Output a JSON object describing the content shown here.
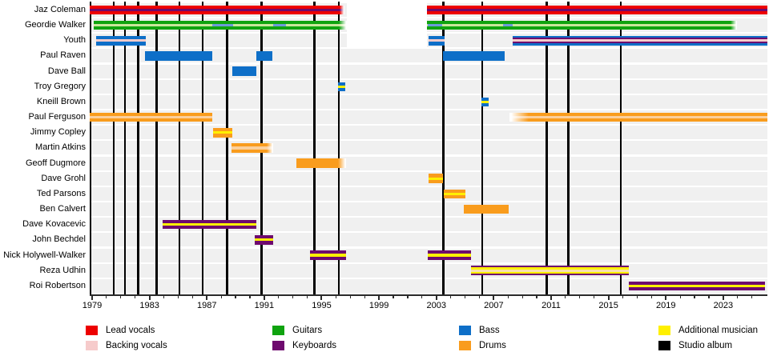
{
  "chart_data": {
    "type": "timeline",
    "title": "",
    "xlabel": "",
    "ylabel": "",
    "axis": {
      "tick_years": [
        1979,
        1983,
        1987,
        1991,
        1995,
        1999,
        2003,
        2007,
        2011,
        2015,
        2019,
        2023
      ],
      "minor_tick_start": 1979,
      "minor_tick_end": 2025,
      "year_min": 1978.8,
      "year_max": 2026.1,
      "grid": false
    },
    "palette": {
      "lead": "#ED0000",
      "backing": "#F6CBCB",
      "guitars": "#0FA30F",
      "guitars_light": "#C9E79B",
      "keys": "#6E0A6E",
      "keys_light": "#F9DFAF",
      "bass": "#0E6FC8",
      "bass_light": "#6C9BD9",
      "drums": "#F99C1D",
      "drums_light": "#FBCF9B",
      "extra": "#FFF000",
      "album": "#000000",
      "hiatus": "#FFFFFF"
    },
    "legend": [
      {
        "label": "Lead vocals",
        "color_key": "lead"
      },
      {
        "label": "Backing vocals",
        "color_key": "backing"
      },
      {
        "label": "Guitars",
        "color_key": "guitars"
      },
      {
        "label": "Keyboards",
        "color_key": "keys"
      },
      {
        "label": "Bass",
        "color_key": "bass"
      },
      {
        "label": "Drums",
        "color_key": "drums"
      },
      {
        "label": "Additional musician",
        "color_key": "extra"
      },
      {
        "label": "Studio album",
        "color_key": "album"
      }
    ],
    "album_years": [
      1980.5,
      1981.3,
      1982.2,
      1983.5,
      1985.1,
      1986.7,
      1988.4,
      1990.8,
      1994.5,
      1996.2,
      2003.5,
      2006.2,
      2010.7,
      2012.2,
      2015.85
    ],
    "hiatus": {
      "from": 1996.75,
      "to": 2002.34,
      "member_rows": [
        0,
        1,
        2
      ]
    },
    "members": [
      {
        "name": "Jaz Coleman",
        "bars": [
          {
            "from": 1978.83,
            "to": 1996.59,
            "layers": [
              "lead",
              "keys",
              "lead"
            ],
            "fade_r": 6
          },
          {
            "from": 2002.34,
            "to": 2026.06,
            "layers": [
              "lead",
              "keys",
              "lead"
            ]
          }
        ]
      },
      {
        "name": "Geordie Walker",
        "bars": [
          {
            "from": 1979.11,
            "to": 1996.75,
            "layers": [
              "guitars",
              "guitars_light",
              "guitars"
            ],
            "fade_r": 10
          },
          {
            "from": 2002.34,
            "to": 2023.94,
            "layers": [
              "guitars",
              "guitars_light",
              "guitars"
            ],
            "fade_r": 8
          },
          {
            "from": 1987.38,
            "to": 1988.83,
            "layers": [
              "guitars",
              "bass_light",
              "guitars"
            ]
          },
          {
            "from": 1991.62,
            "to": 1992.51,
            "layers": [
              "guitars",
              "bass_light",
              "guitars"
            ]
          },
          {
            "from": 2002.39,
            "to": 2003.4,
            "layers": [
              "guitars",
              "bass_light",
              "guitars"
            ]
          },
          {
            "from": 2007.64,
            "to": 2008.31,
            "layers": [
              "guitars",
              "bass_light",
              "guitars"
            ]
          }
        ]
      },
      {
        "name": "Youth",
        "bars": [
          {
            "from": 1979.28,
            "to": 1982.74,
            "layers": [
              "bass",
              "backing",
              "bass"
            ]
          },
          {
            "from": 2002.45,
            "to": 2003.57,
            "layers": [
              "bass",
              "backing",
              "bass"
            ]
          },
          {
            "from": 2008.31,
            "to": 2026.06,
            "layers": [
              "bass",
              "keys",
              "backing",
              "keys",
              "bass"
            ]
          }
        ]
      },
      {
        "name": "Paul Raven",
        "bars": [
          {
            "from": 1982.69,
            "to": 1987.38,
            "layers": [
              "bass"
            ]
          },
          {
            "from": 1990.45,
            "to": 1991.56,
            "layers": [
              "bass"
            ]
          },
          {
            "from": 2003.46,
            "to": 2007.75,
            "layers": [
              "bass"
            ]
          }
        ]
      },
      {
        "name": "Dave Ball",
        "bars": [
          {
            "from": 1988.77,
            "to": 1990.45,
            "layers": [
              "bass"
            ]
          }
        ]
      },
      {
        "name": "Troy Gregory",
        "bars": [
          {
            "from": 1996.14,
            "to": 1996.64,
            "layers": [
              "bass",
              "extra",
              "bass"
            ]
          }
        ]
      },
      {
        "name": "Kneill Brown",
        "bars": [
          {
            "from": 2006.13,
            "to": 2006.63,
            "layers": [
              "bass",
              "extra",
              "bass"
            ]
          }
        ]
      },
      {
        "name": "Paul Ferguson",
        "bars": [
          {
            "from": 1978.83,
            "to": 1987.38,
            "layers": [
              "drums",
              "drums_light",
              "drums"
            ]
          },
          {
            "from": 2008.09,
            "to": 2026.06,
            "layers": [
              "drums",
              "drums_light",
              "drums"
            ],
            "fade_l": 24
          }
        ]
      },
      {
        "name": "Jimmy Copley",
        "bars": [
          {
            "from": 1987.43,
            "to": 1988.77,
            "layers": [
              "drums",
              "extra",
              "drums"
            ]
          }
        ]
      },
      {
        "name": "Martin Atkins",
        "bars": [
          {
            "from": 1988.71,
            "to": 1991.62,
            "layers": [
              "drums",
              "drums_light",
              "drums"
            ],
            "fade_r": 8
          }
        ]
      },
      {
        "name": "Geoff Dugmore",
        "bars": [
          {
            "from": 1993.24,
            "to": 1996.7,
            "layers": [
              "drums"
            ],
            "fade_r": 10
          }
        ]
      },
      {
        "name": "Dave Grohl",
        "bars": [
          {
            "from": 2002.45,
            "to": 2003.46,
            "layers": [
              "drums",
              "extra",
              "drums"
            ]
          }
        ]
      },
      {
        "name": "Ted Parsons",
        "bars": [
          {
            "from": 2003.51,
            "to": 2005.02,
            "layers": [
              "drums",
              "extra",
              "drums"
            ]
          }
        ]
      },
      {
        "name": "Ben Calvert",
        "bars": [
          {
            "from": 2004.91,
            "to": 2008.03,
            "layers": [
              "drums"
            ]
          }
        ]
      },
      {
        "name": "Dave Kovacevic",
        "bars": [
          {
            "from": 1983.91,
            "to": 1990.45,
            "layers": [
              "keys",
              "extra",
              "keys"
            ]
          }
        ]
      },
      {
        "name": "John Bechdel",
        "bars": [
          {
            "from": 1990.33,
            "to": 1991.62,
            "layers": [
              "keys",
              "extra",
              "keys"
            ]
          }
        ]
      },
      {
        "name": "Nick Holywell-Walker",
        "bars": [
          {
            "from": 1994.19,
            "to": 1996.7,
            "layers": [
              "keys",
              "extra",
              "keys"
            ]
          },
          {
            "from": 2002.39,
            "to": 2005.41,
            "layers": [
              "keys",
              "extra",
              "keys"
            ]
          }
        ]
      },
      {
        "name": "Reza Udhin",
        "bars": [
          {
            "from": 2005.41,
            "to": 2016.41,
            "layers": [
              "keys",
              "extra",
              "keys_light",
              "extra",
              "keys"
            ]
          }
        ]
      },
      {
        "name": "Roi Robertson",
        "bars": [
          {
            "from": 2016.41,
            "to": 2025.9,
            "layers": [
              "keys",
              "extra",
              "keys"
            ]
          }
        ]
      }
    ]
  }
}
